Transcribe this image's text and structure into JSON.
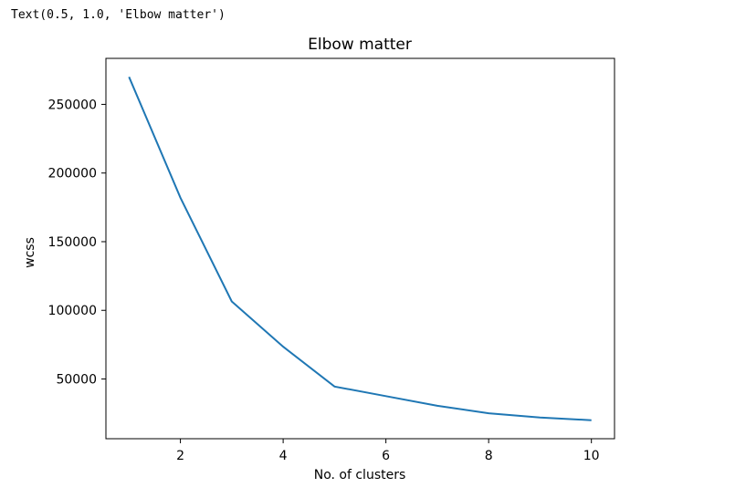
{
  "output_text": "Text(0.5, 1.0, 'Elbow matter')",
  "chart_data": {
    "type": "line",
    "title": "Elbow matter",
    "xlabel": "No. of clusters",
    "ylabel": "wcss",
    "x": [
      1,
      2,
      3,
      4,
      5,
      6,
      7,
      8,
      9,
      10
    ],
    "series": [
      {
        "values": [
          270000,
          182000,
          106500,
          73500,
          44500,
          37500,
          30500,
          25000,
          22000,
          20000
        ]
      }
    ],
    "xlim": [
      0.55,
      10.45
    ],
    "ylim": [
      6500,
      283500
    ],
    "xticks": [
      2,
      4,
      6,
      8,
      10
    ],
    "yticks": [
      50000,
      100000,
      150000,
      200000,
      250000
    ],
    "xtick_labels": [
      "2",
      "4",
      "6",
      "8",
      "10"
    ],
    "ytick_labels": [
      "50000",
      "100000",
      "150000",
      "200000",
      "250000"
    ],
    "line_color": "#1f77b4",
    "grid": false
  }
}
